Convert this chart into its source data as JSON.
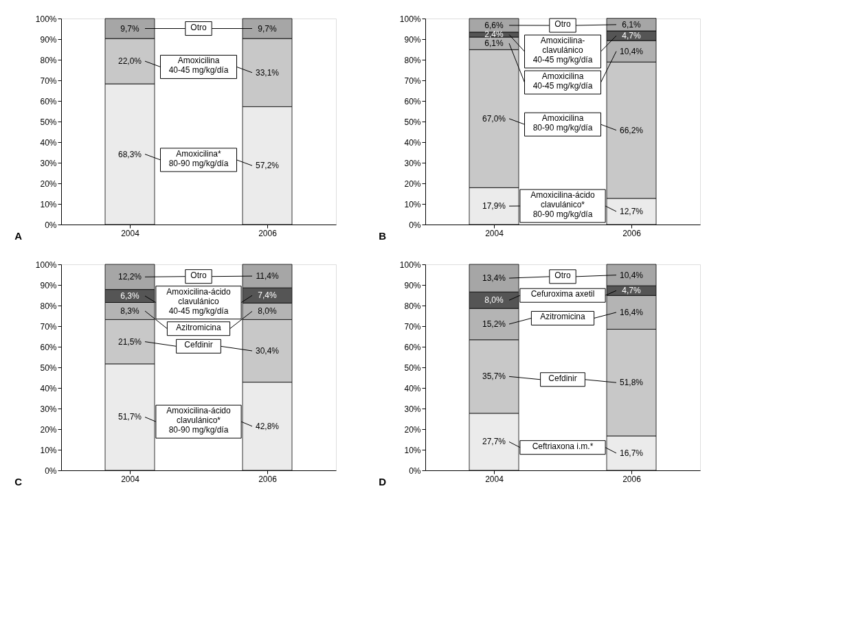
{
  "chart_data": [
    {
      "type": "bar",
      "stacked": true,
      "legend": "center",
      "title": "A",
      "categories": [
        "2004",
        "2006"
      ],
      "ylim": [
        0,
        100
      ],
      "grid": false,
      "yticks": [
        {
          "value": 0,
          "label": "0%"
        },
        {
          "value": 10,
          "label": "10%"
        },
        {
          "value": 20,
          "label": "20%"
        },
        {
          "value": 30,
          "label": "30%"
        },
        {
          "value": 40,
          "label": "40%"
        },
        {
          "value": 50,
          "label": "50%"
        },
        {
          "value": 60,
          "label": "60%"
        },
        {
          "value": 70,
          "label": "70%"
        },
        {
          "value": 80,
          "label": "80%"
        },
        {
          "value": 90,
          "label": "90%"
        },
        {
          "value": 100,
          "label": "100%"
        }
      ],
      "series": [
        {
          "name": "Amoxicilina*\n80-90 mg/kg/día",
          "color": "#ebebeb",
          "values": [
            68.3,
            57.2
          ],
          "value_labels": [
            "68,3%",
            "57,2%"
          ]
        },
        {
          "name": "Amoxicilina\n40-45 mg/kg/día",
          "color": "#c8c8c8",
          "values": [
            22.0,
            33.1
          ],
          "value_labels": [
            "22,0%",
            "33,1%"
          ]
        },
        {
          "name": "Otro",
          "color": "#a6a6a6",
          "values": [
            9.7,
            9.7
          ],
          "value_labels": [
            "9,7%",
            "9,7%"
          ]
        }
      ]
    },
    {
      "type": "bar",
      "stacked": true,
      "legend": "center",
      "title": "B",
      "categories": [
        "2004",
        "2006"
      ],
      "ylim": [
        0,
        100
      ],
      "grid": false,
      "yticks": [
        {
          "value": 0,
          "label": "0%"
        },
        {
          "value": 10,
          "label": "10%"
        },
        {
          "value": 20,
          "label": "20%"
        },
        {
          "value": 30,
          "label": "30%"
        },
        {
          "value": 40,
          "label": "40%"
        },
        {
          "value": 50,
          "label": "50%"
        },
        {
          "value": 60,
          "label": "60%"
        },
        {
          "value": 70,
          "label": "70%"
        },
        {
          "value": 80,
          "label": "80%"
        },
        {
          "value": 90,
          "label": "90%"
        },
        {
          "value": 100,
          "label": "100%"
        }
      ],
      "series": [
        {
          "name": "Amoxicilina-ácido\nclavulánico*\n80-90 mg/kg/día",
          "color": "#ebebeb",
          "values": [
            17.9,
            12.7
          ],
          "value_labels": [
            "17,9%",
            "12,7%"
          ]
        },
        {
          "name": "Amoxicilina\n80-90 mg/kg/día",
          "color": "#c8c8c8",
          "values": [
            67.0,
            66.2
          ],
          "value_labels": [
            "67,0%",
            "66,2%"
          ]
        },
        {
          "name": "Amoxicilina\n40-45 mg/kg/día",
          "color": "#b0b0b0",
          "values": [
            6.1,
            10.4
          ],
          "value_labels": [
            "6,1%",
            "10,4%"
          ]
        },
        {
          "name": "Amoxicilina-\nclavulánico\n40-45 mg/kg/día",
          "color": "#555555",
          "values": [
            2.4,
            4.7
          ],
          "value_labels": [
            "2,4%",
            "4,7%"
          ]
        },
        {
          "name": "Otro",
          "color": "#a6a6a6",
          "values": [
            6.6,
            6.1
          ],
          "value_labels": [
            "6,6%",
            "6,1%"
          ]
        }
      ]
    },
    {
      "type": "bar",
      "stacked": true,
      "legend": "center",
      "title": "C",
      "categories": [
        "2004",
        "2006"
      ],
      "ylim": [
        0,
        100
      ],
      "grid": false,
      "yticks": [
        {
          "value": 0,
          "label": "0%"
        },
        {
          "value": 10,
          "label": "10%"
        },
        {
          "value": 20,
          "label": "20%"
        },
        {
          "value": 30,
          "label": "30%"
        },
        {
          "value": 40,
          "label": "40%"
        },
        {
          "value": 50,
          "label": "50%"
        },
        {
          "value": 60,
          "label": "60%"
        },
        {
          "value": 70,
          "label": "70%"
        },
        {
          "value": 80,
          "label": "80%"
        },
        {
          "value": 90,
          "label": "90%"
        },
        {
          "value": 100,
          "label": "100%"
        }
      ],
      "series": [
        {
          "name": "Amoxicilina-ácido\nclavulánico*\n80-90 mg/kg/día",
          "color": "#ebebeb",
          "values": [
            51.7,
            42.8
          ],
          "value_labels": [
            "51,7%",
            "42,8%"
          ]
        },
        {
          "name": "Cefdinir",
          "color": "#c8c8c8",
          "values": [
            21.5,
            30.4
          ],
          "value_labels": [
            "21,5%",
            "30,4%"
          ]
        },
        {
          "name": "Azitromicina",
          "color": "#b4b4b4",
          "values": [
            8.3,
            8.0
          ],
          "value_labels": [
            "8,3%",
            "8,0%"
          ]
        },
        {
          "name": "Amoxicilina-ácido\nclavulánico\n40-45 mg/kg/día",
          "color": "#555555",
          "values": [
            6.3,
            7.4
          ],
          "value_labels": [
            "6,3%",
            "7,4%"
          ]
        },
        {
          "name": "Otro",
          "color": "#a6a6a6",
          "values": [
            12.2,
            11.4
          ],
          "value_labels": [
            "12,2%",
            "11,4%"
          ]
        }
      ]
    },
    {
      "type": "bar",
      "stacked": true,
      "legend": "center",
      "title": "D",
      "categories": [
        "2004",
        "2006"
      ],
      "ylim": [
        0,
        100
      ],
      "grid": false,
      "yticks": [
        {
          "value": 0,
          "label": "0%"
        },
        {
          "value": 10,
          "label": "10%"
        },
        {
          "value": 20,
          "label": "20%"
        },
        {
          "value": 30,
          "label": "30%"
        },
        {
          "value": 40,
          "label": "40%"
        },
        {
          "value": 50,
          "label": "50%"
        },
        {
          "value": 60,
          "label": "60%"
        },
        {
          "value": 70,
          "label": "70%"
        },
        {
          "value": 80,
          "label": "80%"
        },
        {
          "value": 90,
          "label": "90%"
        },
        {
          "value": 100,
          "label": "100%"
        }
      ],
      "series": [
        {
          "name": "Ceftriaxona i.m.*",
          "color": "#ebebeb",
          "values": [
            27.7,
            16.7
          ],
          "value_labels": [
            "27,7%",
            "16,7%"
          ]
        },
        {
          "name": "Cefdinir",
          "color": "#c8c8c8",
          "values": [
            35.7,
            51.8
          ],
          "value_labels": [
            "35,7%",
            "51,8%"
          ]
        },
        {
          "name": "Azitromicina",
          "color": "#b4b4b4",
          "values": [
            15.2,
            16.4
          ],
          "value_labels": [
            "15,2%",
            "16,4%"
          ]
        },
        {
          "name": "Cefuroxima axetil",
          "color": "#555555",
          "values": [
            8.0,
            4.7
          ],
          "value_labels": [
            "8,0%",
            "4,7%"
          ]
        },
        {
          "name": "Otro",
          "color": "#a6a6a6",
          "values": [
            13.4,
            10.4
          ],
          "value_labels": [
            "13,4%",
            "10,4%"
          ]
        }
      ]
    }
  ]
}
